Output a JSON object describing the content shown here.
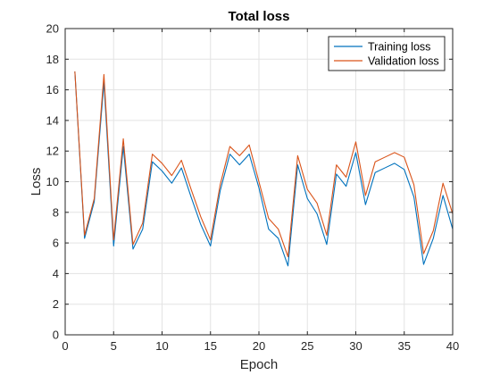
{
  "chart_data": {
    "type": "line",
    "title": "Total loss",
    "xlabel": "Epoch",
    "ylabel": "Loss",
    "xlim": [
      0,
      40
    ],
    "ylim": [
      0,
      20
    ],
    "xticks": [
      0,
      5,
      10,
      15,
      20,
      25,
      30,
      35,
      40
    ],
    "yticks": [
      0,
      2,
      4,
      6,
      8,
      10,
      12,
      14,
      16,
      18,
      20
    ],
    "grid": true,
    "legend_position": "top-right",
    "x": [
      1,
      2,
      3,
      4,
      5,
      6,
      7,
      8,
      9,
      10,
      11,
      12,
      13,
      14,
      15,
      16,
      17,
      18,
      19,
      20,
      21,
      22,
      23,
      24,
      25,
      26,
      27,
      28,
      29,
      30,
      31,
      32,
      33,
      34,
      35,
      36,
      37,
      38,
      39,
      40
    ],
    "series": [
      {
        "name": "Training loss",
        "color": "#0072BD",
        "values": [
          17.2,
          6.3,
          8.7,
          16.5,
          5.8,
          12.3,
          5.6,
          6.9,
          11.3,
          10.7,
          9.9,
          10.9,
          9.0,
          7.2,
          5.8,
          9.4,
          11.8,
          11.1,
          11.8,
          9.6,
          6.9,
          6.3,
          4.5,
          11.1,
          8.9,
          7.9,
          5.9,
          10.5,
          9.7,
          11.9,
          8.5,
          10.6,
          10.9,
          11.2,
          10.8,
          9.0,
          4.6,
          6.3,
          9.1,
          6.9
        ]
      },
      {
        "name": "Validation loss",
        "color": "#D95319",
        "values": [
          17.2,
          6.5,
          8.9,
          17.0,
          6.2,
          12.8,
          5.9,
          7.3,
          11.8,
          11.2,
          10.4,
          11.4,
          9.5,
          7.7,
          6.2,
          9.8,
          12.3,
          11.7,
          12.4,
          10.0,
          7.6,
          6.9,
          5.1,
          11.7,
          9.5,
          8.6,
          6.5,
          11.1,
          10.3,
          12.6,
          9.1,
          11.3,
          11.6,
          11.9,
          11.6,
          9.8,
          5.3,
          6.8,
          9.9,
          7.9
        ]
      }
    ]
  }
}
